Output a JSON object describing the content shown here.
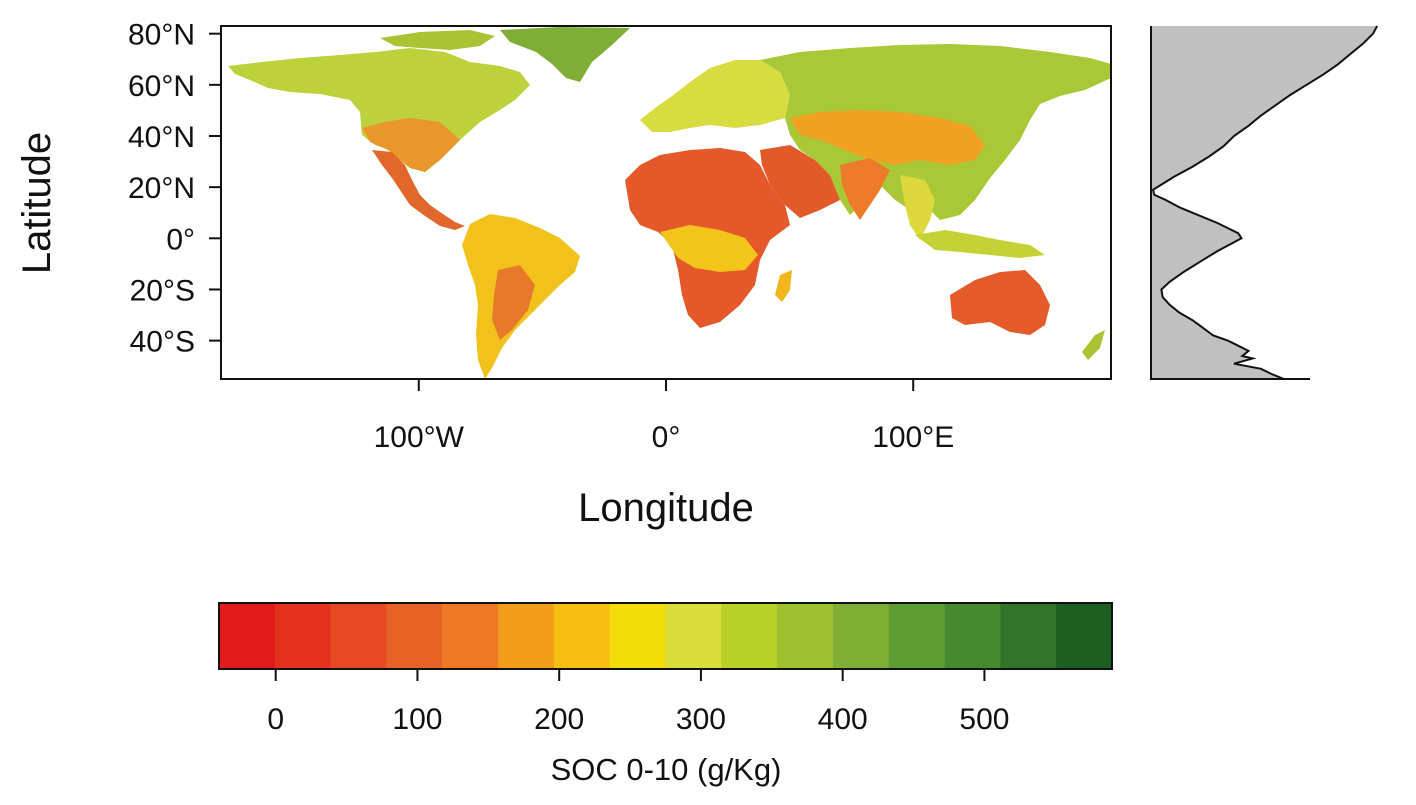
{
  "map": {
    "y_axis_label": "Latitude",
    "x_axis_label": "Longitude",
    "lat_ticks": [
      {
        "value": 80,
        "label": "80°N"
      },
      {
        "value": 60,
        "label": "60°N"
      },
      {
        "value": 40,
        "label": "40°N"
      },
      {
        "value": 20,
        "label": "20°N"
      },
      {
        "value": 0,
        "label": "0°"
      },
      {
        "value": -20,
        "label": "20°S"
      },
      {
        "value": -40,
        "label": "40°S"
      }
    ],
    "lon_ticks": [
      {
        "value": -100,
        "label": "100°W"
      },
      {
        "value": 0,
        "label": "0°"
      },
      {
        "value": 100,
        "label": "100°E"
      }
    ],
    "lon_range": [
      -180,
      180
    ],
    "lat_range": [
      -55,
      83
    ]
  },
  "chart_data": {
    "type": "area",
    "x_range": [
      0,
      600
    ],
    "y_range": [
      -55,
      83
    ],
    "profile": [
      {
        "lat": 83,
        "soc": 545
      },
      {
        "lat": 80,
        "soc": 535
      },
      {
        "lat": 76,
        "soc": 510
      },
      {
        "lat": 72,
        "soc": 480
      },
      {
        "lat": 68,
        "soc": 450
      },
      {
        "lat": 64,
        "soc": 415
      },
      {
        "lat": 60,
        "soc": 375
      },
      {
        "lat": 56,
        "soc": 335
      },
      {
        "lat": 52,
        "soc": 300
      },
      {
        "lat": 48,
        "soc": 265
      },
      {
        "lat": 44,
        "soc": 235
      },
      {
        "lat": 40,
        "soc": 200
      },
      {
        "lat": 36,
        "soc": 175
      },
      {
        "lat": 32,
        "soc": 140
      },
      {
        "lat": 28,
        "soc": 100
      },
      {
        "lat": 24,
        "soc": 55
      },
      {
        "lat": 21,
        "soc": 25
      },
      {
        "lat": 19,
        "soc": 5
      },
      {
        "lat": 17,
        "soc": 8
      },
      {
        "lat": 15,
        "soc": 35
      },
      {
        "lat": 12,
        "soc": 70
      },
      {
        "lat": 9,
        "soc": 115
      },
      {
        "lat": 6,
        "soc": 160
      },
      {
        "lat": 4,
        "soc": 185
      },
      {
        "lat": 2,
        "soc": 210
      },
      {
        "lat": 0,
        "soc": 218
      },
      {
        "lat": -2,
        "soc": 195
      },
      {
        "lat": -5,
        "soc": 160
      },
      {
        "lat": -9,
        "soc": 120
      },
      {
        "lat": -13,
        "soc": 80
      },
      {
        "lat": -17,
        "soc": 45
      },
      {
        "lat": -20,
        "soc": 25
      },
      {
        "lat": -23,
        "soc": 28
      },
      {
        "lat": -26,
        "soc": 45
      },
      {
        "lat": -29,
        "soc": 68
      },
      {
        "lat": -32,
        "soc": 100
      },
      {
        "lat": -35,
        "soc": 125
      },
      {
        "lat": -38,
        "soc": 150
      },
      {
        "lat": -40,
        "soc": 185
      },
      {
        "lat": -42,
        "soc": 210
      },
      {
        "lat": -44,
        "soc": 235
      },
      {
        "lat": -46,
        "soc": 220
      },
      {
        "lat": -47,
        "soc": 245
      },
      {
        "lat": -49,
        "soc": 200
      },
      {
        "lat": -51,
        "soc": 265
      },
      {
        "lat": -53,
        "soc": 290
      },
      {
        "lat": -55,
        "soc": 320
      }
    ],
    "fill_color": "#c0c0c0",
    "line_color": "#111111"
  },
  "legend": {
    "title": "SOC 0-10 (g/Kg)",
    "ticks": [
      {
        "value": 0,
        "label": "0"
      },
      {
        "value": 100,
        "label": "100"
      },
      {
        "value": 200,
        "label": "200"
      },
      {
        "value": 300,
        "label": "300"
      },
      {
        "value": 400,
        "label": "400"
      },
      {
        "value": 500,
        "label": "500"
      }
    ],
    "range": [
      -40,
      590
    ],
    "colors": [
      "#e31a1c",
      "#e3311e",
      "#e54a22",
      "#e96225",
      "#ee7a28",
      "#f39d1c",
      "#f7bf13",
      "#f2dd0a",
      "#d9dd3c",
      "#bad02a",
      "#9dc130",
      "#80ad33",
      "#5f9c34",
      "#468a30",
      "#31742a",
      "#1d5e22"
    ]
  }
}
